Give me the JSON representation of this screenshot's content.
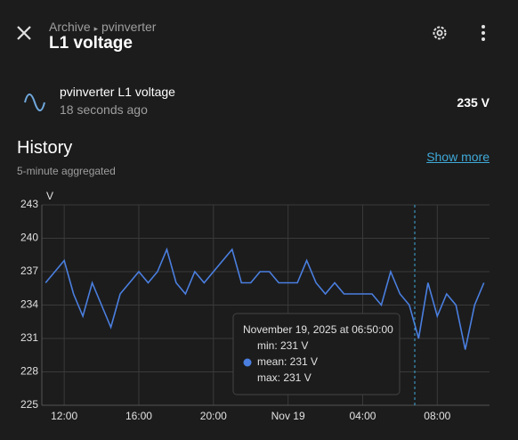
{
  "header": {
    "breadcrumb": [
      "Archive",
      "pvinverter"
    ],
    "title": "L1 voltage"
  },
  "entity": {
    "name": "pvinverter L1 voltage",
    "last_changed": "18 seconds ago",
    "state": "235 V"
  },
  "history": {
    "title": "History",
    "subtitle": "5-minute aggregated",
    "show_more": "Show more"
  },
  "chart_data": {
    "type": "line",
    "y_label": "V",
    "x": [
      11,
      11.5,
      12,
      12.5,
      13,
      13.5,
      14,
      14.5,
      15,
      15.5,
      16,
      16.5,
      17,
      17.5,
      18,
      18.5,
      19,
      19.5,
      20,
      20.5,
      21,
      21.5,
      22,
      22.5,
      23,
      23.5,
      24,
      24.5,
      25,
      25.5,
      26,
      26.5,
      27,
      27.5,
      28,
      28.5,
      29,
      29.5,
      30,
      30.5,
      31,
      31.5,
      32,
      32.5,
      33,
      33.5,
      34,
      34.5
    ],
    "series": [
      {
        "name": "mean",
        "color": "#4a7fe0",
        "values": [
          236,
          237,
          238,
          235,
          233,
          236,
          234,
          232,
          235,
          236,
          237,
          236,
          237,
          239,
          236,
          235,
          237,
          236,
          237,
          238,
          239,
          236,
          236,
          237,
          237,
          236,
          236,
          236,
          238,
          236,
          235,
          236,
          235,
          235,
          235,
          235,
          234,
          237,
          235,
          234,
          231,
          236,
          233,
          235,
          234,
          230,
          234,
          236
        ]
      }
    ],
    "xlim": [
      10.8,
      34.8
    ],
    "xticks": [
      {
        "value": 12,
        "label": "12:00"
      },
      {
        "value": 16,
        "label": "16:00"
      },
      {
        "value": 20,
        "label": "20:00"
      },
      {
        "value": 24,
        "label": "Nov 19"
      },
      {
        "value": 28,
        "label": "04:00"
      },
      {
        "value": 32,
        "label": "08:00"
      }
    ],
    "ylim": [
      225,
      243
    ],
    "yticks": [
      225,
      228,
      231,
      234,
      237,
      240,
      243
    ],
    "grid": true,
    "tooltip": {
      "title": "November 19, 2025 at 06:50:00",
      "rows": [
        "min: 231 V",
        "mean: 231 V",
        "max: 231 V"
      ]
    }
  }
}
